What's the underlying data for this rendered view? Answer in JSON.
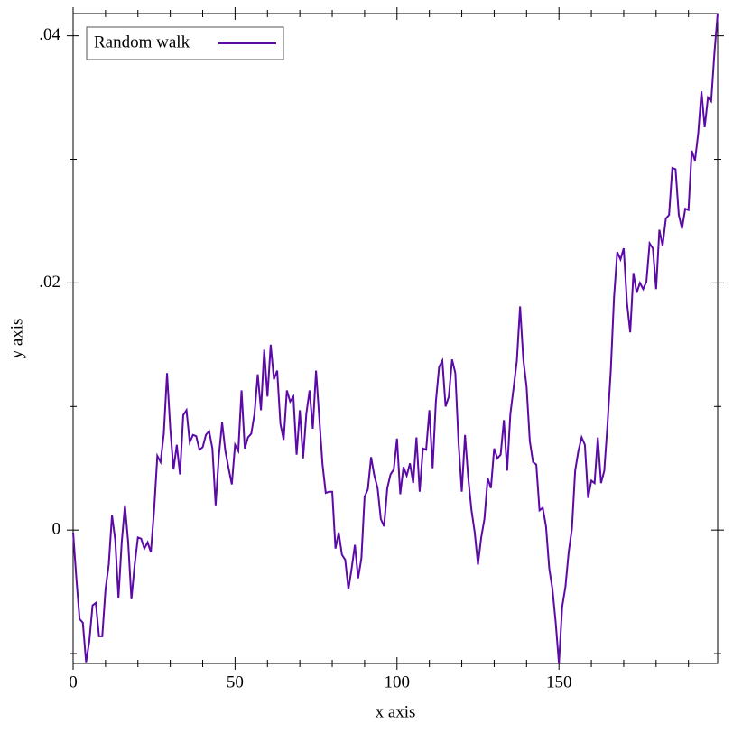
{
  "chart_data": {
    "type": "line",
    "xlabel": "x axis",
    "ylabel": "y axis",
    "x": [
      0,
      1,
      2,
      3,
      4,
      5,
      6,
      7,
      8,
      9,
      10,
      11,
      12,
      13,
      14,
      15,
      16,
      17,
      18,
      19,
      20,
      21,
      22,
      23,
      24,
      25,
      26,
      27,
      28,
      29,
      30,
      31,
      32,
      33,
      34,
      35,
      36,
      37,
      38,
      39,
      40,
      41,
      42,
      43,
      44,
      45,
      46,
      47,
      48,
      49,
      50,
      51,
      52,
      53,
      54,
      55,
      56,
      57,
      58,
      59,
      60,
      61,
      62,
      63,
      64,
      65,
      66,
      67,
      68,
      69,
      70,
      71,
      72,
      73,
      74,
      75,
      76,
      77,
      78,
      79,
      80,
      81,
      82,
      83,
      84,
      85,
      86,
      87,
      88,
      89,
      90,
      91,
      92,
      93,
      94,
      95,
      96,
      97,
      98,
      99,
      100,
      101,
      102,
      103,
      104,
      105,
      106,
      107,
      108,
      109,
      110,
      111,
      112,
      113,
      114,
      115,
      116,
      117,
      118,
      119,
      120,
      121,
      122,
      123,
      124,
      125,
      126,
      127,
      128,
      129,
      130,
      131,
      132,
      133,
      134,
      135,
      136,
      137,
      138,
      139,
      140,
      141,
      142,
      143,
      144,
      145,
      146,
      147,
      148,
      149,
      150,
      151,
      152,
      153,
      154,
      155,
      156,
      157,
      158,
      159,
      160,
      161,
      162,
      163,
      164,
      165,
      166,
      167,
      168,
      169,
      170,
      171,
      172,
      173,
      174,
      175,
      176,
      177,
      178,
      179,
      180,
      181,
      182,
      183,
      184,
      185,
      186,
      187,
      188,
      189,
      190,
      191,
      192,
      193,
      194,
      195,
      196,
      197,
      198,
      199
    ],
    "series": [
      {
        "name": "Random walk",
        "color": "#5b0aa8",
        "values": [
          -0.0002,
          -0.0039,
          -0.0072,
          -0.0075,
          -0.0107,
          -0.009,
          -0.0061,
          -0.0059,
          -0.0086,
          -0.0086,
          -0.0048,
          -0.0028,
          0.0012,
          -0.0008,
          -0.0055,
          -0.001,
          0.002,
          -0.001,
          -0.0056,
          -0.0028,
          -0.0006,
          -0.0007,
          -0.0015,
          -0.001,
          -0.0018,
          0.0016,
          0.006,
          0.0055,
          0.0078,
          0.0127,
          0.0082,
          0.0049,
          0.0069,
          0.0045,
          0.0093,
          0.0097,
          0.0071,
          0.0077,
          0.0076,
          0.0065,
          0.0067,
          0.0077,
          0.008,
          0.0066,
          0.002,
          0.006,
          0.0087,
          0.0064,
          0.005,
          0.0037,
          0.0069,
          0.0064,
          0.0113,
          0.0066,
          0.0075,
          0.0078,
          0.0094,
          0.0126,
          0.0097,
          0.0146,
          0.0108,
          0.015,
          0.0122,
          0.0129,
          0.0086,
          0.0073,
          0.0113,
          0.0104,
          0.0108,
          0.0061,
          0.0097,
          0.0058,
          0.0094,
          0.0113,
          0.0082,
          0.0129,
          0.0091,
          0.0053,
          0.003,
          0.0031,
          0.0031,
          -0.0015,
          -0.0002,
          -0.002,
          -0.0024,
          -0.0048,
          -0.0031,
          -0.0012,
          -0.0039,
          -0.0023,
          0.0027,
          0.0033,
          0.0059,
          0.0044,
          0.0034,
          0.0009,
          0.0003,
          0.0034,
          0.0045,
          0.0049,
          0.0074,
          0.0029,
          0.0051,
          0.0044,
          0.0054,
          0.0038,
          0.0075,
          0.0031,
          0.0066,
          0.0065,
          0.0097,
          0.005,
          0.0104,
          0.0132,
          0.0137,
          0.01,
          0.0108,
          0.0138,
          0.0127,
          0.0071,
          0.0031,
          0.0077,
          0.0042,
          0.0016,
          -0.0002,
          -0.0028,
          -0.0006,
          0.0009,
          0.0042,
          0.0034,
          0.0066,
          0.0058,
          0.0061,
          0.0089,
          0.0048,
          0.0094,
          0.0115,
          0.0137,
          0.0181,
          0.0138,
          0.0116,
          0.0072,
          0.0055,
          0.0053,
          0.0016,
          0.0018,
          0.0003,
          -0.0031,
          -0.0048,
          -0.0075,
          -0.0108,
          -0.0062,
          -0.0046,
          -0.0018,
          0.0001,
          0.0048,
          0.0064,
          0.0075,
          0.0069,
          0.0026,
          0.004,
          0.0038,
          0.0075,
          0.0038,
          0.0048,
          0.0086,
          0.0129,
          0.0188,
          0.0225,
          0.0219,
          0.0228,
          0.0184,
          0.016,
          0.0208,
          0.0192,
          0.02,
          0.0195,
          0.0201,
          0.0232,
          0.0228,
          0.0195,
          0.0243,
          0.023,
          0.0252,
          0.0255,
          0.0293,
          0.0292,
          0.0255,
          0.0244,
          0.026,
          0.0259,
          0.0307,
          0.0299,
          0.0321,
          0.0355,
          0.0326,
          0.035,
          0.0347,
          0.0386,
          0.0418
        ]
      }
    ],
    "xlim": [
      0,
      199
    ],
    "ylim": [
      -0.0108,
      0.0418
    ],
    "xticks": [
      0,
      50,
      100,
      150
    ],
    "xminorticks": [
      10,
      20,
      30,
      40,
      60,
      70,
      80,
      90,
      110,
      120,
      130,
      140,
      160,
      170,
      180,
      190
    ],
    "yticks": [
      0,
      {
        "value": 0.02,
        "label": ".02"
      },
      {
        "value": 0.04,
        "label": ".04"
      }
    ],
    "yminorticks": [
      -0.01,
      0.01,
      0.03
    ],
    "legend": "top-left"
  }
}
